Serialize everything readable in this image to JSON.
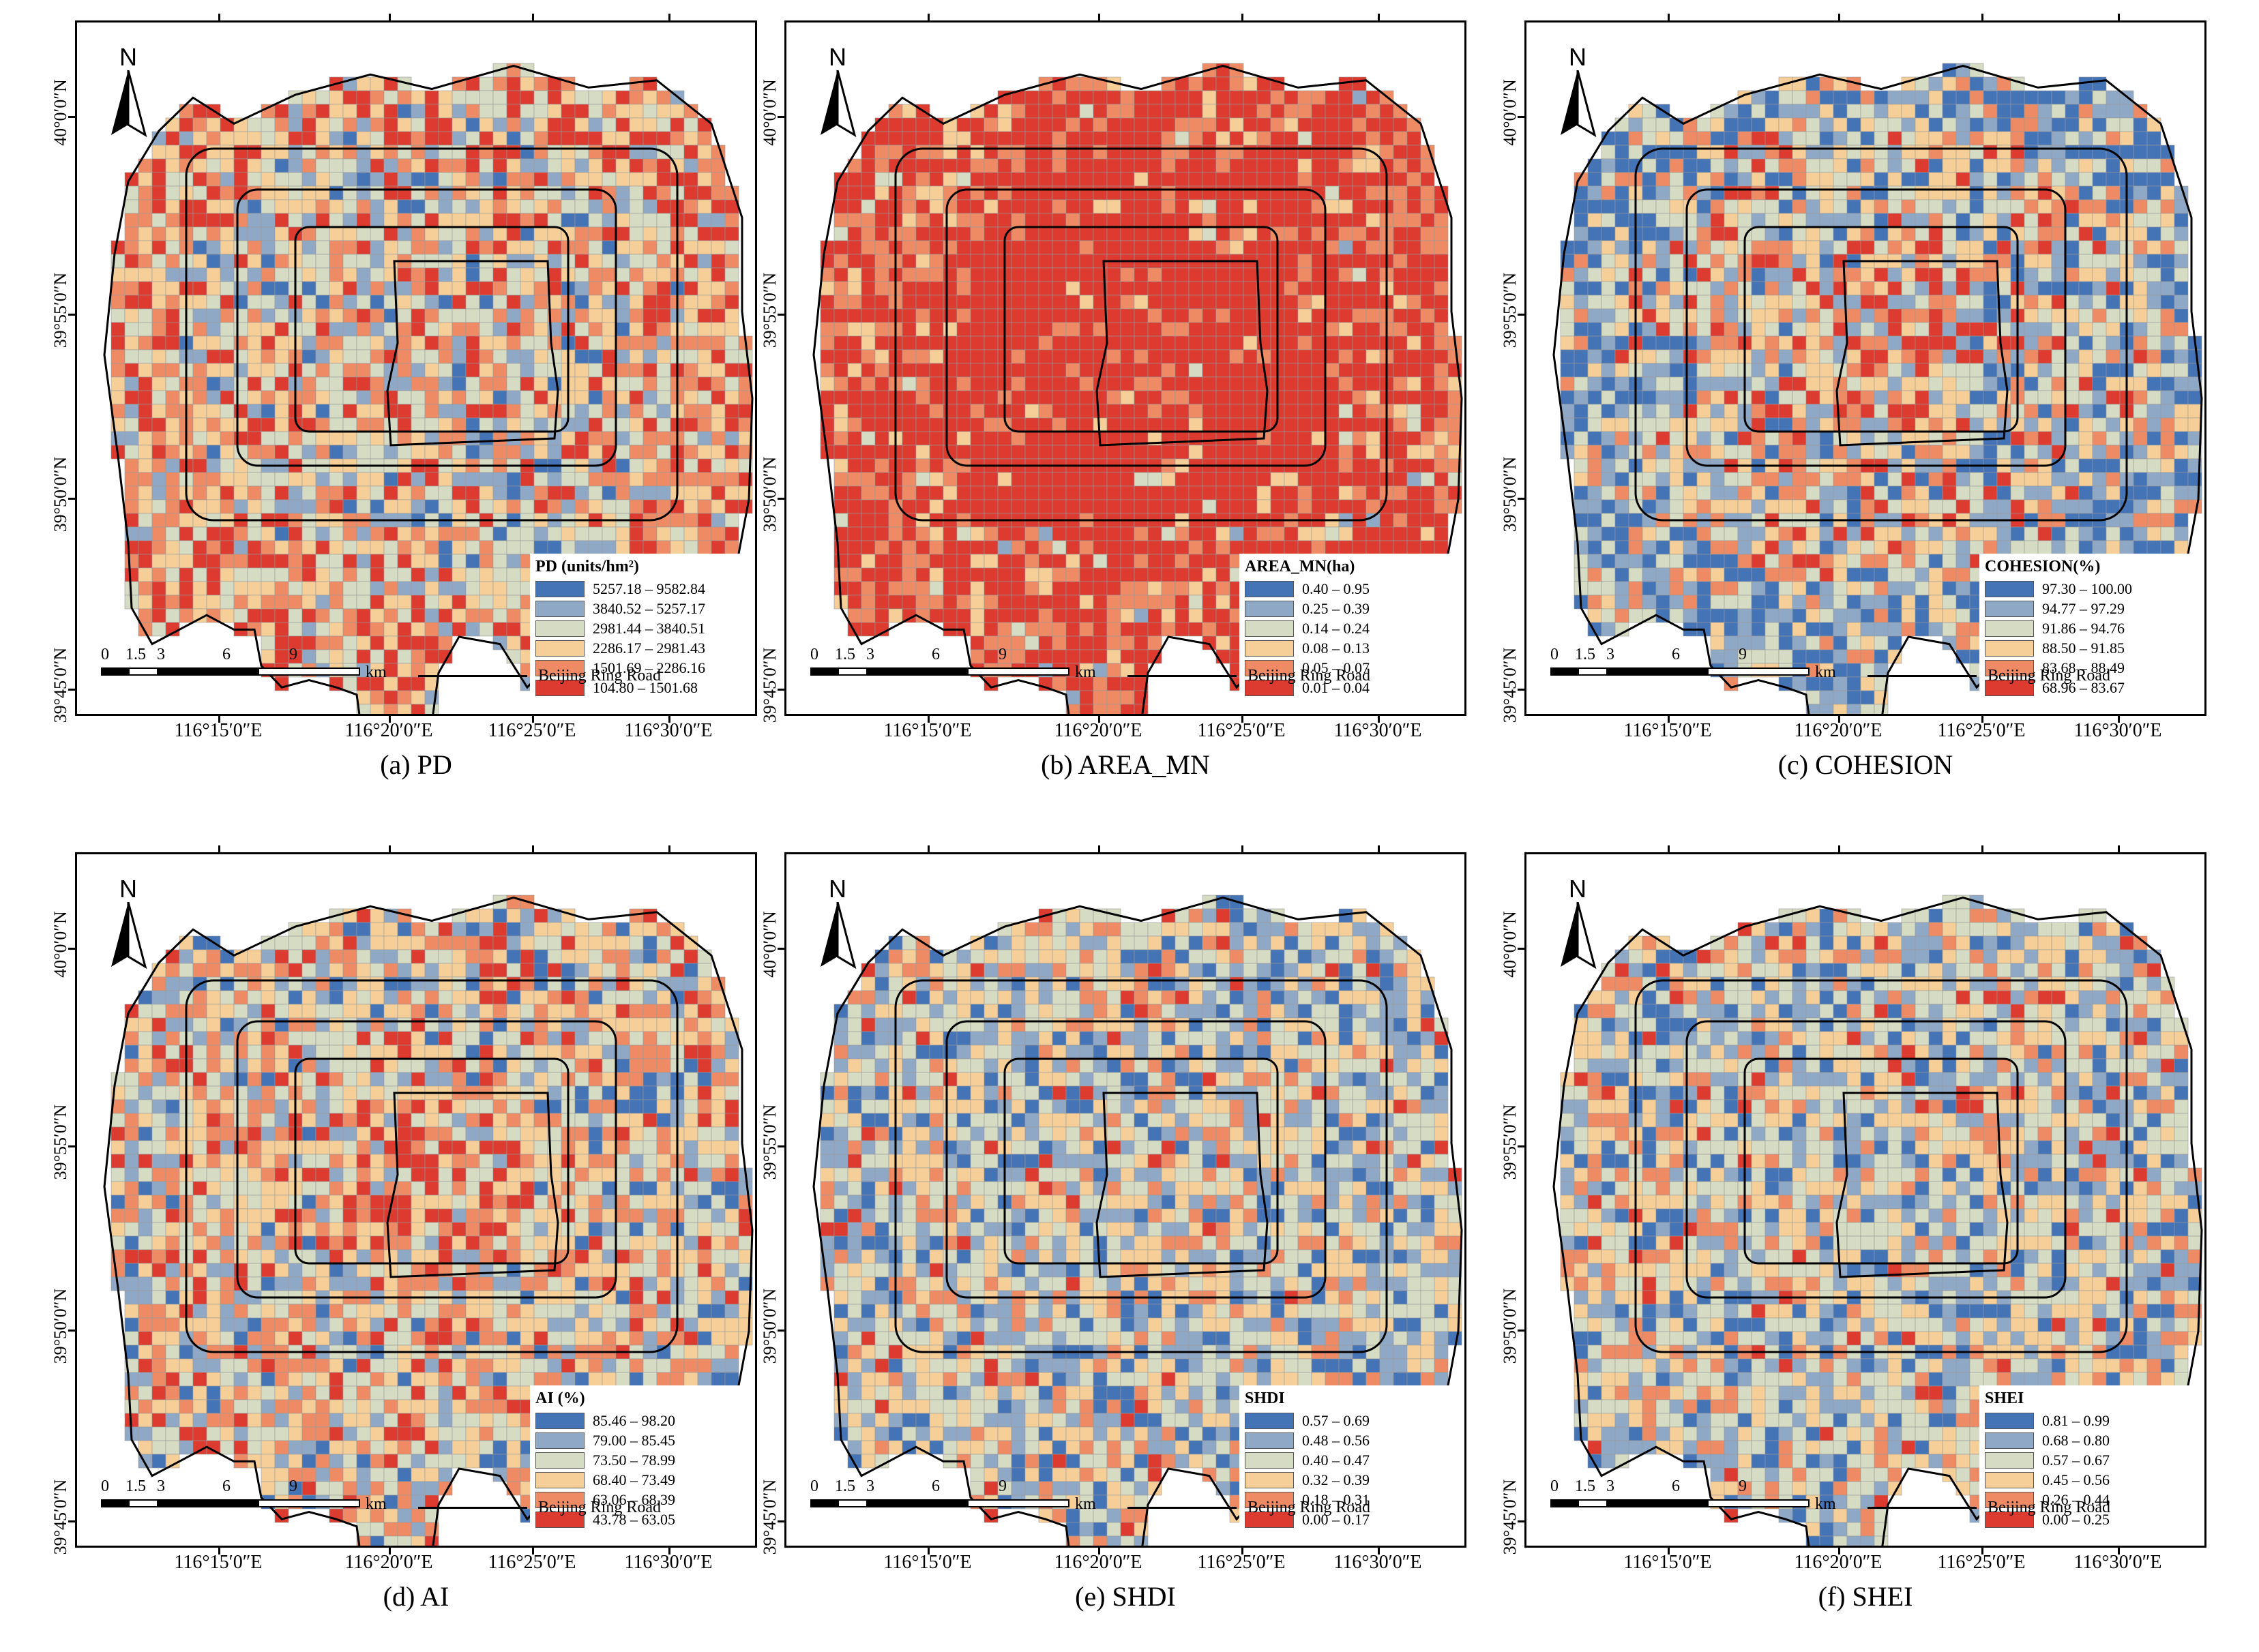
{
  "north_label": "N",
  "lon_ticks": [
    "116°15′0″E",
    "116°20′0″E",
    "116°25′0″E",
    "116°30′0″E"
  ],
  "lat_ticks": [
    "40°0′0″N",
    "39°55′0″N",
    "39°50′0″N",
    "39°45′0″N"
  ],
  "scale": {
    "ticks": [
      "0",
      "1.5",
      "3",
      "6",
      "9"
    ],
    "unit": "km"
  },
  "ring_road_label": "Beijing Ring Road",
  "colors": {
    "c1": "#4574b6",
    "c2": "#8fa8c6",
    "c3": "#d5dcc3",
    "c4": "#f6cf98",
    "c5": "#ee8b64",
    "c6": "#dd3b30"
  },
  "panels": [
    {
      "caption": "(a) PD",
      "legend_title": "PD (units/hm²)",
      "classes": [
        "5257.18 – 9582.84",
        "3840.52 – 5257.17",
        "2981.44 – 3840.51",
        "2286.17 – 2981.43",
        "1501.69 – 2286.16",
        "104.80 – 1501.68"
      ],
      "class_share": [
        0.07,
        0.16,
        0.23,
        0.22,
        0.17,
        0.15
      ]
    },
    {
      "caption": "(b) AREA_MN",
      "legend_title": "AREA_MN(ha)",
      "classes": [
        "0.40 – 0.95",
        "0.25 – 0.39",
        "0.14 – 0.24",
        "0.08 – 0.13",
        "0.05 – 0.07",
        "0.01 – 0.04"
      ],
      "class_share": [
        0.0,
        0.01,
        0.04,
        0.1,
        0.25,
        0.6
      ]
    },
    {
      "caption": "(c) COHESION",
      "legend_title": "COHESION(%)",
      "classes": [
        "97.30 – 100.00",
        "94.77 – 97.29",
        "91.86 – 94.76",
        "88.50 – 91.85",
        "83.68 – 88.49",
        "68.96 – 83.67"
      ],
      "class_share": [
        0.12,
        0.2,
        0.22,
        0.2,
        0.14,
        0.12
      ]
    },
    {
      "caption": "(d)  AI",
      "legend_title": "AI (%)",
      "classes": [
        "85.46 – 98.20",
        "79.00 – 85.45",
        "73.50 – 78.99",
        "68.40 – 73.49",
        "63.06 – 68.39",
        "43.78 – 63.05"
      ],
      "class_share": [
        0.08,
        0.14,
        0.22,
        0.24,
        0.2,
        0.12
      ]
    },
    {
      "caption": "(e) SHDI",
      "legend_title": "SHDI",
      "classes": [
        "0.57 – 0.69",
        "0.48 – 0.56",
        "0.40 – 0.47",
        "0.32 – 0.39",
        "0.18 – 0.31",
        "0.00 – 0.17"
      ],
      "class_share": [
        0.14,
        0.22,
        0.26,
        0.22,
        0.12,
        0.04
      ]
    },
    {
      "caption": "(f) SHEI",
      "legend_title": "SHEI",
      "classes": [
        "0.81 – 0.99",
        "0.68 – 0.80",
        "0.57 – 0.67",
        "0.45 – 0.56",
        "0.26 – 0.44",
        "0.00 – 0.25"
      ],
      "class_share": [
        0.14,
        0.22,
        0.26,
        0.22,
        0.12,
        0.04
      ]
    }
  ]
}
